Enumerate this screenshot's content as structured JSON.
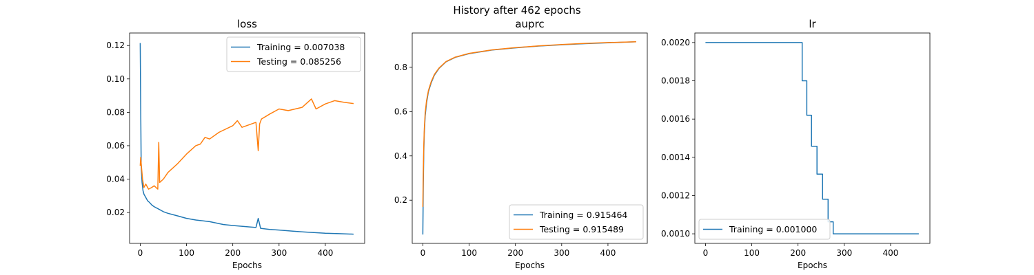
{
  "figure": {
    "title": "History after 462 epochs"
  },
  "chart_data": [
    {
      "type": "line",
      "title": "loss",
      "xlabel": "Epochs",
      "ylabel": "",
      "xlim": [
        -23,
        485
      ],
      "ylim": [
        0.0015,
        0.1275
      ],
      "xticks": [
        0,
        100,
        200,
        300,
        400
      ],
      "yticks": [
        0.02,
        0.04,
        0.06,
        0.08,
        0.1,
        0.12
      ],
      "ytick_labels": [
        "0.02",
        "0.04",
        "0.06",
        "0.08",
        "0.10",
        "0.12"
      ],
      "legend": "upper right",
      "series": [
        {
          "name": "Training = 0.007038",
          "color": "#1f77b4",
          "x": [
            0,
            2,
            4,
            6,
            8,
            12,
            16,
            20,
            25,
            30,
            40,
            50,
            60,
            80,
            100,
            120,
            150,
            180,
            200,
            230,
            250,
            255,
            260,
            280,
            300,
            330,
            350,
            400,
            430,
            461
          ],
          "y": [
            0.1215,
            0.048,
            0.038,
            0.033,
            0.031,
            0.029,
            0.027,
            0.026,
            0.0245,
            0.0235,
            0.022,
            0.0205,
            0.0195,
            0.018,
            0.0165,
            0.0155,
            0.0145,
            0.0128,
            0.0122,
            0.0115,
            0.011,
            0.0165,
            0.0105,
            0.0098,
            0.0095,
            0.0088,
            0.0084,
            0.0076,
            0.0073,
            0.007038
          ]
        },
        {
          "name": "Testing = 0.085256",
          "color": "#ff7f0e",
          "x": [
            0,
            1,
            3,
            5,
            8,
            12,
            18,
            25,
            30,
            38,
            40,
            42,
            50,
            60,
            80,
            100,
            120,
            130,
            140,
            150,
            170,
            200,
            210,
            220,
            250,
            255,
            258,
            262,
            280,
            300,
            320,
            350,
            370,
            380,
            400,
            420,
            440,
            461
          ],
          "y": [
            0.048,
            0.053,
            0.046,
            0.04,
            0.035,
            0.037,
            0.034,
            0.035,
            0.036,
            0.034,
            0.062,
            0.038,
            0.04,
            0.044,
            0.049,
            0.055,
            0.06,
            0.061,
            0.065,
            0.064,
            0.068,
            0.072,
            0.075,
            0.071,
            0.074,
            0.057,
            0.073,
            0.076,
            0.079,
            0.082,
            0.081,
            0.083,
            0.088,
            0.082,
            0.085,
            0.087,
            0.086,
            0.085256
          ]
        }
      ]
    },
    {
      "type": "line",
      "title": "auprc",
      "xlabel": "Epochs",
      "ylabel": "",
      "xlim": [
        -23,
        485
      ],
      "ylim": [
        0.005,
        0.955
      ],
      "xticks": [
        0,
        100,
        200,
        300,
        400
      ],
      "yticks": [
        0.2,
        0.4,
        0.6,
        0.8
      ],
      "ytick_labels": [
        "0.2",
        "0.4",
        "0.6",
        "0.8"
      ],
      "legend": "lower right",
      "series": [
        {
          "name": "Training = 0.915464",
          "color": "#1f77b4",
          "x": [
            0,
            1,
            2,
            3,
            5,
            8,
            12,
            18,
            25,
            35,
            50,
            70,
            100,
            150,
            200,
            250,
            300,
            350,
            400,
            461
          ],
          "y": [
            0.045,
            0.28,
            0.42,
            0.5,
            0.58,
            0.64,
            0.69,
            0.73,
            0.765,
            0.795,
            0.825,
            0.845,
            0.862,
            0.878,
            0.888,
            0.896,
            0.902,
            0.907,
            0.911,
            0.915464
          ]
        },
        {
          "name": "Testing = 0.915489",
          "color": "#ff7f0e",
          "x": [
            0,
            1,
            2,
            3,
            5,
            8,
            12,
            18,
            25,
            35,
            50,
            70,
            100,
            150,
            200,
            250,
            300,
            350,
            400,
            461
          ],
          "y": [
            0.17,
            0.34,
            0.45,
            0.52,
            0.595,
            0.65,
            0.695,
            0.735,
            0.768,
            0.797,
            0.826,
            0.846,
            0.863,
            0.879,
            0.889,
            0.897,
            0.903,
            0.908,
            0.912,
            0.915489
          ]
        }
      ]
    },
    {
      "type": "line",
      "title": "lr",
      "xlabel": "Epochs",
      "ylabel": "",
      "xlim": [
        -23,
        485
      ],
      "ylim": [
        0.00095,
        0.00205
      ],
      "xticks": [
        0,
        100,
        200,
        300,
        400
      ],
      "yticks": [
        0.001,
        0.0012,
        0.0014,
        0.0016,
        0.0018,
        0.002
      ],
      "ytick_labels": [
        "0.0010",
        "0.0012",
        "0.0014",
        "0.0016",
        "0.0018",
        "0.0020"
      ],
      "legend": "lower left",
      "series": [
        {
          "name": "Training = 0.001000",
          "color": "#1f77b4",
          "x": [
            0,
            209,
            209,
            219,
            219,
            229,
            229,
            241,
            241,
            253,
            253,
            265,
            265,
            276,
            276,
            461
          ],
          "y": [
            0.002,
            0.002,
            0.0018,
            0.0018,
            0.00162,
            0.00162,
            0.001458,
            0.001458,
            0.001312,
            0.001312,
            0.001181,
            0.001181,
            0.001063,
            0.001063,
            0.001,
            0.001
          ]
        }
      ]
    }
  ]
}
